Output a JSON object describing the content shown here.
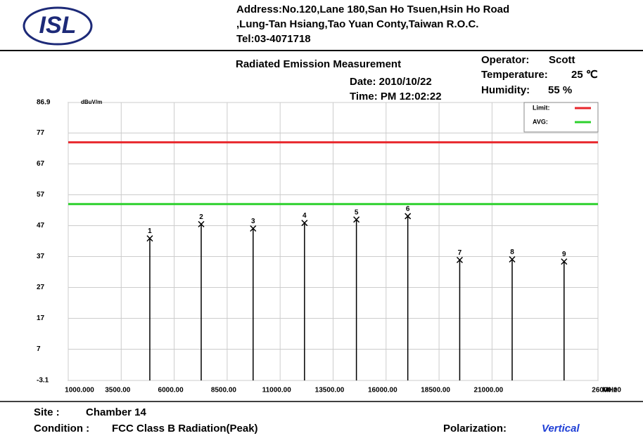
{
  "header": {
    "logo": "ISL",
    "address": [
      "Address:No.120,Lane 180,San Ho Tsuen,Hsin Ho Road",
      ",Lung-Tan Hsiang,Tao Yuan Conty,Taiwan R.O.C.",
      "Tel:03-4071718"
    ]
  },
  "info": {
    "title": "Radiated Emission Measurement",
    "date": "Date: 2010/10/22",
    "time": "Time: PM 12:02:22",
    "operator_label": "Operator:",
    "operator": "Scott",
    "temperature_label": "Temperature:",
    "temperature": "25 ℃",
    "humidity_label": "Humidity:",
    "humidity": "55 %"
  },
  "chart_data": {
    "type": "stem",
    "y_unit": "dBuV/m",
    "x_unit": "MHz",
    "xlim": [
      1000,
      26000
    ],
    "ylim": [
      -3.1,
      86.9
    ],
    "xticks": [
      {
        "value": 1000,
        "label": "1000.000"
      },
      {
        "value": 3500,
        "label": "3500.00"
      },
      {
        "value": 6000,
        "label": "6000.00"
      },
      {
        "value": 8500,
        "label": "8500.00"
      },
      {
        "value": 11000,
        "label": "11000.00"
      },
      {
        "value": 13500,
        "label": "13500.00"
      },
      {
        "value": 16000,
        "label": "16000.00"
      },
      {
        "value": 18500,
        "label": "18500.00"
      },
      {
        "value": 21000,
        "label": "21000.00"
      },
      {
        "value": 26000,
        "label": "26000.00"
      }
    ],
    "yticks": [
      86.9,
      77,
      67,
      57,
      47,
      37,
      27,
      17,
      7,
      -3.1
    ],
    "grid": true,
    "points": {
      "x": [
        4850,
        7275,
        9725,
        12150,
        14600,
        17025,
        19475,
        21950,
        24400
      ],
      "values": [
        42.9,
        47.5,
        46.1,
        47.9,
        49.0,
        50.1,
        35.9,
        36.1,
        35.4
      ],
      "labels": [
        "1",
        "2",
        "3",
        "4",
        "5",
        "6",
        "7",
        "8",
        "9"
      ],
      "color": "#000000"
    },
    "series": [
      {
        "name": "Limit:",
        "value": 74,
        "color": "#e8262b"
      },
      {
        "name": "AVG:",
        "value": 54,
        "color": "#2ed12e"
      }
    ],
    "legend": "upper right"
  },
  "footer": {
    "site_label": "Site :",
    "site": "Chamber 14",
    "condition_label": "Condition :",
    "condition": "FCC Class B  Radiation(Peak)",
    "polarization_label": "Polarization:",
    "polarization": "Vertical"
  }
}
